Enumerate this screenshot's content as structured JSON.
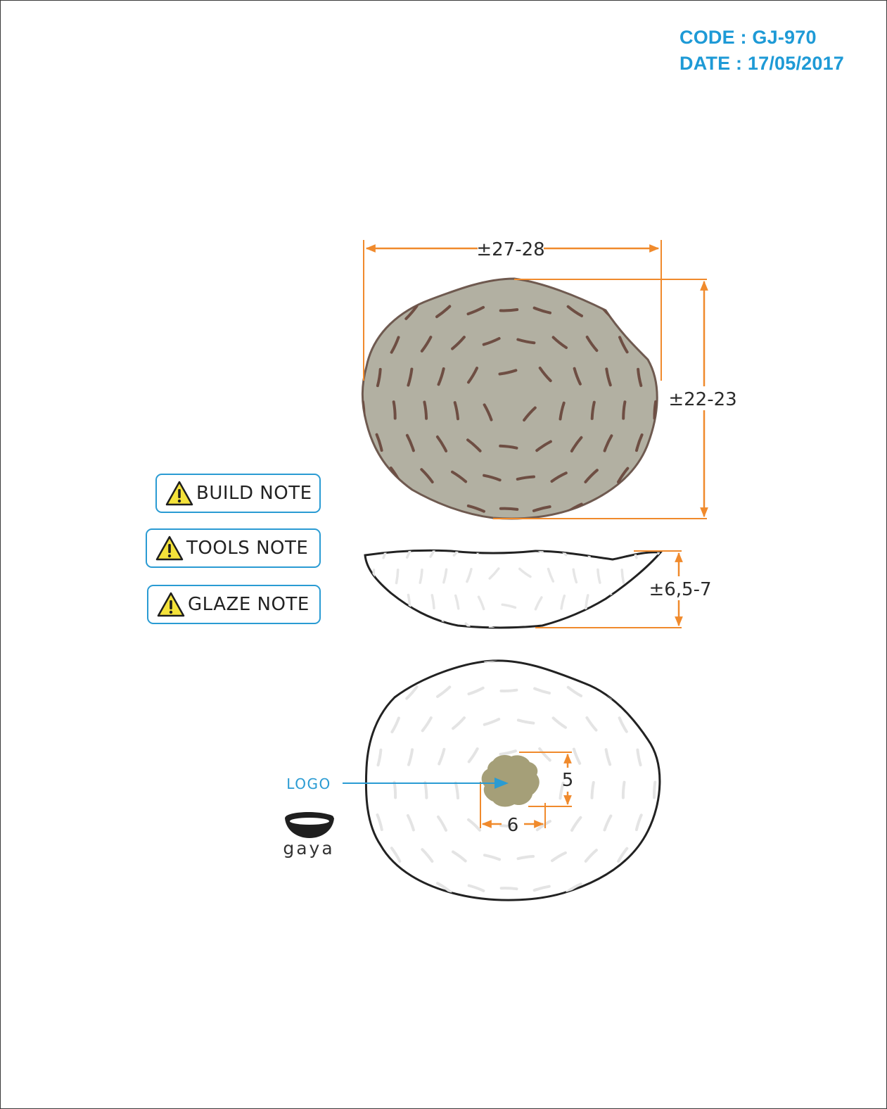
{
  "header": {
    "code": "CODE : GJ-970",
    "date": "DATE : 17/05/2017"
  },
  "notes": [
    {
      "label": "BUILD NOTE",
      "icon": "warning-icon"
    },
    {
      "label": "TOOLS NOTE",
      "icon": "warning-icon"
    },
    {
      "label": "GLAZE NOTE",
      "icon": "warning-icon"
    }
  ],
  "dimensions": {
    "width": "±27-28",
    "depth": "±22-23",
    "height": "±6,5-7",
    "logo_height": "5",
    "logo_width": "6"
  },
  "logo_callout": "LOGO",
  "brand": {
    "name": "gaya",
    "icon": "bowl-logo-icon"
  },
  "colors": {
    "header_text": "#1e9ad6",
    "dimension_lines": "#f08a2c",
    "plate_glaze": "#b2b0a2",
    "logo_patch": "#a59f78",
    "note_border": "#2a9bd3"
  }
}
